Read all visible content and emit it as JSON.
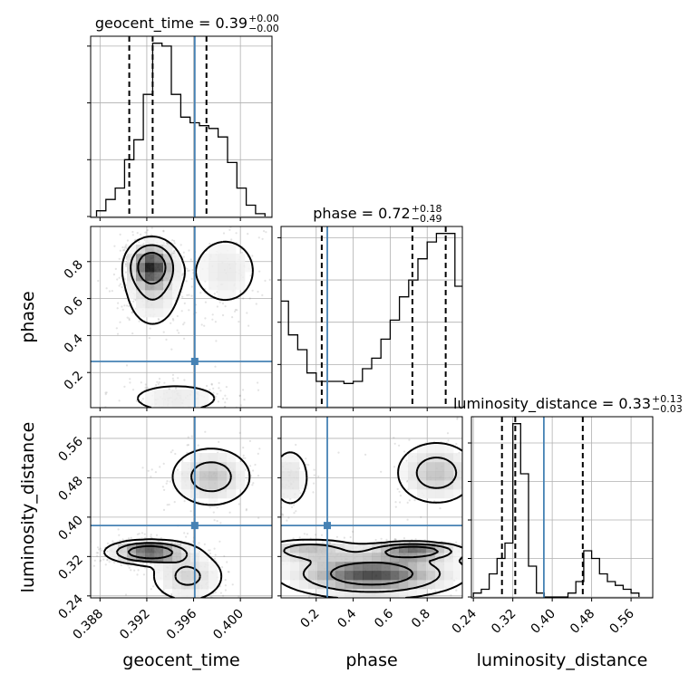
{
  "colors": {
    "truth": "#4682b4",
    "line": "#000000",
    "grid": "#b0b0b0",
    "scatter": "#808080"
  },
  "chart_data": {
    "type": "corner",
    "parameters": [
      "geocent_time",
      "phase",
      "luminosity_distance"
    ],
    "axis_labels": {
      "x": [
        "geocent_time",
        "phase",
        "luminosity_distance"
      ],
      "y": [
        "phase",
        "luminosity_distance"
      ]
    },
    "titles": [
      {
        "param": "geocent_time",
        "label": "geocent_time = 0.39",
        "sup": "+0.00",
        "sub": "−0.00"
      },
      {
        "param": "phase",
        "label": "phase = 0.72",
        "sup": "+0.18",
        "sub": "−0.49"
      },
      {
        "param": "luminosity_distance",
        "label": "luminosity_distance = 0.33",
        "sup": "+0.13",
        "sub": "−0.03"
      }
    ],
    "ranges": {
      "geocent_time": [
        0.3872,
        0.4027
      ],
      "phase": [
        0.01,
        0.99
      ],
      "luminosity_distance": [
        0.236,
        0.604
      ]
    },
    "ticks": {
      "geocent_time": [
        0.388,
        0.392,
        0.396,
        0.4
      ],
      "phase": [
        0.2,
        0.4,
        0.6,
        0.8
      ],
      "luminosity_distance": [
        0.24,
        0.32,
        0.4,
        0.48,
        0.56
      ]
    },
    "tick_labels": {
      "geocent_time": [
        "0.388",
        "0.392",
        "0.396",
        "0.400"
      ],
      "phase": [
        "0.2",
        "0.4",
        "0.6",
        "0.8"
      ],
      "luminosity_distance": [
        "0.24",
        "0.32",
        "0.40",
        "0.48",
        "0.56"
      ]
    },
    "truths": {
      "geocent_time": 0.3961,
      "phase": 0.26,
      "luminosity_distance": 0.383
    },
    "quantiles": {
      "geocent_time": [
        0.3905,
        0.3925,
        0.3971
      ],
      "phase": [
        0.23,
        0.72,
        0.9
      ],
      "luminosity_distance": [
        0.298,
        0.325,
        0.462
      ]
    },
    "histograms": {
      "geocent_time": {
        "edges": [
          0.3877,
          0.3885,
          0.3893,
          0.3901,
          0.3909,
          0.3917,
          0.3925,
          0.3933,
          0.3941,
          0.3949,
          0.3957,
          0.3965,
          0.3973,
          0.3981,
          0.3989,
          0.3997,
          0.4005,
          0.4013,
          0.4021
        ],
        "counts": [
          2,
          6,
          10,
          20,
          27,
          43,
          61,
          60,
          43,
          35,
          33,
          32,
          31,
          28,
          19,
          10,
          4,
          1
        ]
      },
      "phase": {
        "edges": [
          0.0,
          0.05,
          0.1,
          0.15,
          0.2,
          0.25,
          0.3,
          0.35,
          0.4,
          0.45,
          0.5,
          0.55,
          0.6,
          0.65,
          0.7,
          0.75,
          0.8,
          0.85,
          0.9,
          0.95,
          1.0
        ],
        "counts": [
          50,
          34,
          27,
          16,
          12,
          12,
          12,
          11,
          12,
          18,
          23,
          32,
          41,
          52,
          60,
          70,
          78,
          82,
          82,
          57
        ]
      },
      "luminosity_distance": {
        "edges": [
          0.24,
          0.256,
          0.272,
          0.288,
          0.304,
          0.32,
          0.336,
          0.352,
          0.368,
          0.384,
          0.4,
          0.416,
          0.432,
          0.448,
          0.464,
          0.48,
          0.496,
          0.512,
          0.528,
          0.544,
          0.56,
          0.576
        ],
        "counts": [
          1,
          2,
          6,
          10,
          14,
          45,
          32,
          8,
          1,
          0,
          0,
          0,
          1,
          4,
          12,
          10,
          6,
          4,
          3,
          2,
          1
        ]
      }
    },
    "density_2d": {
      "phase_vs_geocent_time": [
        {
          "x": 0.3924,
          "y": 0.78,
          "sx": 0.0011,
          "sy": 0.07,
          "w": 0.5
        },
        {
          "x": 0.3925,
          "y": 0.66,
          "sx": 0.0014,
          "sy": 0.13,
          "w": 0.2
        },
        {
          "x": 0.3987,
          "y": 0.75,
          "sx": 0.0018,
          "sy": 0.12,
          "w": 0.15
        },
        {
          "x": 0.3945,
          "y": 0.06,
          "sx": 0.0025,
          "sy": 0.05,
          "w": 0.15
        }
      ],
      "luminosity_distance_vs_geocent_time": [
        {
          "x": 0.3922,
          "y": 0.329,
          "sx": 0.0018,
          "sy": 0.012,
          "w": 0.55
        },
        {
          "x": 0.3975,
          "y": 0.482,
          "sx": 0.0019,
          "sy": 0.033,
          "w": 0.25
        },
        {
          "x": 0.3955,
          "y": 0.28,
          "sx": 0.0018,
          "sy": 0.03,
          "w": 0.2
        }
      ],
      "luminosity_distance_vs_phase": [
        {
          "x": 0.73,
          "y": 0.331,
          "sx": 0.13,
          "sy": 0.009,
          "w": 0.3
        },
        {
          "x": 0.16,
          "y": 0.333,
          "sx": 0.14,
          "sy": 0.012,
          "w": 0.15
        },
        {
          "x": 0.85,
          "y": 0.49,
          "sx": 0.12,
          "sy": 0.035,
          "w": 0.15
        },
        {
          "x": 0.06,
          "y": 0.48,
          "sx": 0.06,
          "sy": 0.035,
          "w": 0.1
        },
        {
          "x": 0.5,
          "y": 0.285,
          "sx": 0.25,
          "sy": 0.025,
          "w": 0.3
        }
      ]
    }
  }
}
